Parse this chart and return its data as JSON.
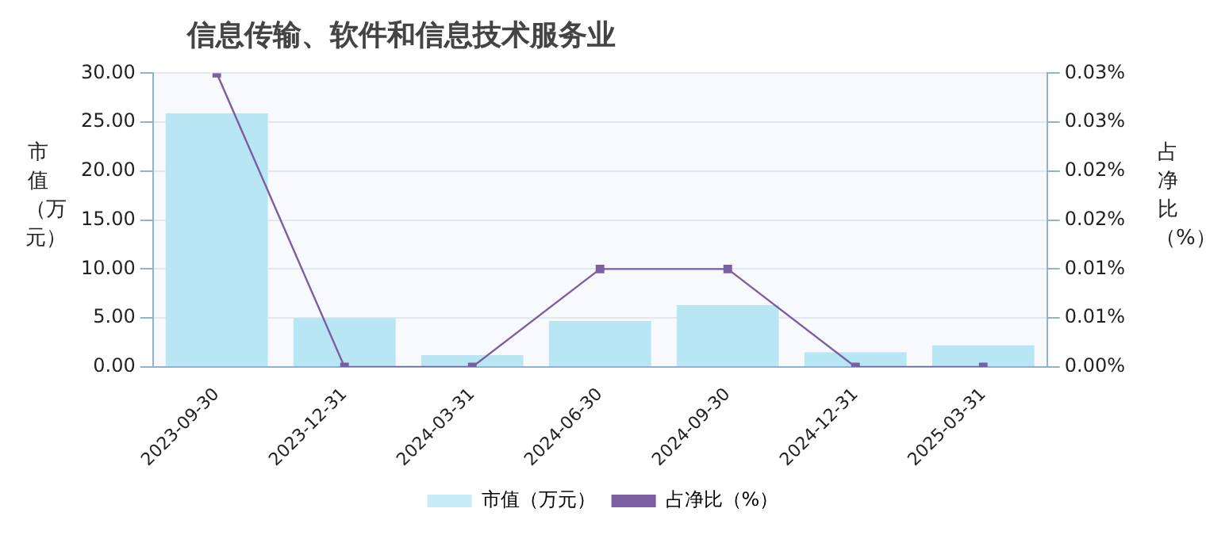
{
  "chart_data": {
    "type": "bar",
    "title": "信息传输、软件和信息技术服务业",
    "ylabel": "市值（万元）",
    "y2label": "占净比（%）",
    "categories": [
      "2023-09-30",
      "2023-12-31",
      "2024-03-31",
      "2024-06-30",
      "2024-09-30",
      "2024-12-31",
      "2025-03-31"
    ],
    "series": [
      {
        "name": "市值（万元）",
        "color": "#b8e6f5",
        "values": [
          25.9,
          5.0,
          1.2,
          4.7,
          6.3,
          1.5,
          2.2
        ]
      },
      {
        "name": "占净比（%）",
        "type": "line",
        "axis": "y2",
        "color": "#7b5fa0",
        "values": [
          0.03,
          0,
          0,
          0.01,
          0.01,
          0,
          0
        ]
      }
    ],
    "ylim": [
      0,
      30
    ],
    "yticks": [
      {
        "value": 0,
        "label": "0.00"
      },
      {
        "value": 5,
        "label": "5.00"
      },
      {
        "value": 10,
        "label": "10.00"
      },
      {
        "value": 15,
        "label": "15.00"
      },
      {
        "value": 20,
        "label": "20.00"
      },
      {
        "value": 25,
        "label": "25.00"
      },
      {
        "value": 30,
        "label": "30.00"
      }
    ],
    "y2lim": [
      0,
      0.03
    ],
    "y2ticks": [
      {
        "value": 0,
        "label": "0.00%"
      },
      {
        "value": 0.005,
        "label": "0.01%"
      },
      {
        "value": 0.01,
        "label": "0.01%"
      },
      {
        "value": 0.015,
        "label": "0.02%"
      },
      {
        "value": 0.02,
        "label": "0.02%"
      },
      {
        "value": 0.025,
        "label": "0.03%"
      },
      {
        "value": 0.03,
        "label": "0.03%"
      }
    ],
    "grid": "y",
    "legend": "bottom",
    "marker": "square",
    "line_style": "solid"
  }
}
